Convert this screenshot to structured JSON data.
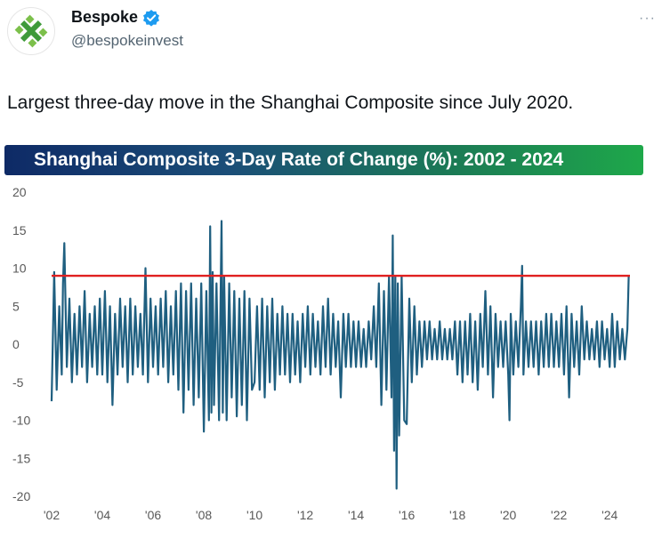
{
  "author": {
    "name": "Bespoke",
    "handle": "@bespokeinvest",
    "verified_color": "#1d9bf0",
    "avatar_icon": "bespoke-logo-icon"
  },
  "menu": {
    "more_label": "···"
  },
  "tweet": {
    "text": "Largest three-day move in the Shanghai Composite since July 2020."
  },
  "colors": {
    "series": "#1f5f80",
    "threshold": "#e02020",
    "banner_start": "#0e2a66",
    "banner_end": "#1ea84a"
  },
  "chart_data": {
    "type": "line",
    "title": "Shanghai Composite 3-Day Rate of Change (%):  2002 - 2024",
    "xlabel": "",
    "ylabel": "",
    "x_ticks": [
      "'02",
      "'04",
      "'06",
      "'08",
      "'10",
      "'12",
      "'14",
      "'16",
      "'18",
      "'20",
      "'22",
      "'24"
    ],
    "y_ticks": [
      20,
      15,
      10,
      5,
      0,
      -5,
      -10,
      -15,
      -20
    ],
    "ylim": [
      -20,
      20
    ],
    "xlim": [
      2002.0,
      2024.8
    ],
    "grid": false,
    "legend": "none",
    "threshold": {
      "value": 9.0,
      "x_start": 2002.0,
      "x_end": 2024.8
    },
    "series": [
      {
        "points": [
          [
            2002.0,
            -7.5
          ],
          [
            2002.1,
            9.5
          ],
          [
            2002.2,
            -6
          ],
          [
            2002.3,
            5
          ],
          [
            2002.4,
            -4
          ],
          [
            2002.45,
            8
          ],
          [
            2002.5,
            13.3
          ],
          [
            2002.6,
            -3
          ],
          [
            2002.7,
            6
          ],
          [
            2002.8,
            -5
          ],
          [
            2002.9,
            4
          ],
          [
            2003.0,
            -4
          ],
          [
            2003.1,
            5
          ],
          [
            2003.2,
            -3
          ],
          [
            2003.3,
            7
          ],
          [
            2003.4,
            -5
          ],
          [
            2003.5,
            4
          ],
          [
            2003.6,
            -3
          ],
          [
            2003.7,
            5
          ],
          [
            2003.8,
            -4
          ],
          [
            2003.9,
            6
          ],
          [
            2004.0,
            -4
          ],
          [
            2004.1,
            7
          ],
          [
            2004.2,
            -5
          ],
          [
            2004.3,
            5
          ],
          [
            2004.4,
            -8
          ],
          [
            2004.5,
            4
          ],
          [
            2004.6,
            -4
          ],
          [
            2004.7,
            6
          ],
          [
            2004.8,
            -3
          ],
          [
            2004.9,
            5
          ],
          [
            2005.0,
            -5
          ],
          [
            2005.1,
            6
          ],
          [
            2005.2,
            -4
          ],
          [
            2005.3,
            5
          ],
          [
            2005.4,
            -3
          ],
          [
            2005.5,
            4
          ],
          [
            2005.6,
            -4
          ],
          [
            2005.7,
            10
          ],
          [
            2005.8,
            -5
          ],
          [
            2005.9,
            6
          ],
          [
            2006.0,
            -3
          ],
          [
            2006.1,
            5
          ],
          [
            2006.2,
            -4
          ],
          [
            2006.3,
            6
          ],
          [
            2006.4,
            -3
          ],
          [
            2006.5,
            7
          ],
          [
            2006.6,
            -5
          ],
          [
            2006.7,
            5
          ],
          [
            2006.8,
            -4
          ],
          [
            2006.9,
            7
          ],
          [
            2007.0,
            -6
          ],
          [
            2007.1,
            8
          ],
          [
            2007.2,
            -9
          ],
          [
            2007.3,
            7
          ],
          [
            2007.4,
            -6
          ],
          [
            2007.5,
            8
          ],
          [
            2007.6,
            -8
          ],
          [
            2007.7,
            6
          ],
          [
            2007.8,
            -7
          ],
          [
            2007.9,
            8
          ],
          [
            2008.0,
            -11.5
          ],
          [
            2008.1,
            7
          ],
          [
            2008.2,
            -10
          ],
          [
            2008.25,
            15.5
          ],
          [
            2008.3,
            -9
          ],
          [
            2008.35,
            9.5
          ],
          [
            2008.4,
            -8
          ],
          [
            2008.5,
            8
          ],
          [
            2008.6,
            -10
          ],
          [
            2008.7,
            16.2
          ],
          [
            2008.75,
            -9
          ],
          [
            2008.8,
            9
          ],
          [
            2008.9,
            -10
          ],
          [
            2009.0,
            8
          ],
          [
            2009.1,
            -7
          ],
          [
            2009.2,
            7
          ],
          [
            2009.3,
            -9.5
          ],
          [
            2009.4,
            6
          ],
          [
            2009.5,
            -8
          ],
          [
            2009.6,
            7
          ],
          [
            2009.7,
            -10
          ],
          [
            2009.8,
            6
          ],
          [
            2009.9,
            -6
          ],
          [
            2010.0,
            -5
          ],
          [
            2010.1,
            5
          ],
          [
            2010.2,
            -6
          ],
          [
            2010.3,
            6
          ],
          [
            2010.4,
            -7
          ],
          [
            2010.5,
            5
          ],
          [
            2010.6,
            -5
          ],
          [
            2010.7,
            6
          ],
          [
            2010.8,
            -6
          ],
          [
            2010.9,
            4
          ],
          [
            2011.0,
            -4
          ],
          [
            2011.1,
            5
          ],
          [
            2011.2,
            -4
          ],
          [
            2011.3,
            4
          ],
          [
            2011.4,
            -5
          ],
          [
            2011.5,
            4
          ],
          [
            2011.6,
            -4
          ],
          [
            2011.7,
            3
          ],
          [
            2011.8,
            -5
          ],
          [
            2011.9,
            4
          ],
          [
            2012.0,
            -3
          ],
          [
            2012.1,
            5
          ],
          [
            2012.2,
            -4
          ],
          [
            2012.3,
            4
          ],
          [
            2012.4,
            -3
          ],
          [
            2012.5,
            3
          ],
          [
            2012.6,
            -4
          ],
          [
            2012.7,
            5
          ],
          [
            2012.8,
            -3
          ],
          [
            2012.9,
            6
          ],
          [
            2013.0,
            -4
          ],
          [
            2013.1,
            4
          ],
          [
            2013.2,
            -3
          ],
          [
            2013.3,
            3
          ],
          [
            2013.4,
            -7
          ],
          [
            2013.5,
            4
          ],
          [
            2013.6,
            -3
          ],
          [
            2013.7,
            4
          ],
          [
            2013.8,
            -3
          ],
          [
            2013.9,
            3
          ],
          [
            2014.0,
            -3
          ],
          [
            2014.1,
            3
          ],
          [
            2014.2,
            -3
          ],
          [
            2014.3,
            2
          ],
          [
            2014.4,
            -3
          ],
          [
            2014.5,
            3
          ],
          [
            2014.6,
            -2
          ],
          [
            2014.7,
            5
          ],
          [
            2014.8,
            -3
          ],
          [
            2014.9,
            8
          ],
          [
            2015.0,
            -8
          ],
          [
            2015.1,
            7
          ],
          [
            2015.2,
            -6
          ],
          [
            2015.3,
            9
          ],
          [
            2015.4,
            -7
          ],
          [
            2015.45,
            14.3
          ],
          [
            2015.5,
            -14
          ],
          [
            2015.55,
            9
          ],
          [
            2015.6,
            -19
          ],
          [
            2015.65,
            8
          ],
          [
            2015.7,
            -12
          ],
          [
            2015.8,
            9
          ],
          [
            2015.9,
            -10
          ],
          [
            2016.0,
            -10.5
          ],
          [
            2016.1,
            6
          ],
          [
            2016.2,
            -5
          ],
          [
            2016.3,
            5
          ],
          [
            2016.4,
            -4
          ],
          [
            2016.5,
            3
          ],
          [
            2016.6,
            -3
          ],
          [
            2016.7,
            3
          ],
          [
            2016.8,
            -2
          ],
          [
            2016.9,
            3
          ],
          [
            2017.0,
            -2
          ],
          [
            2017.1,
            2
          ],
          [
            2017.2,
            -2
          ],
          [
            2017.3,
            3
          ],
          [
            2017.4,
            -2
          ],
          [
            2017.5,
            2
          ],
          [
            2017.6,
            -2
          ],
          [
            2017.7,
            2
          ],
          [
            2017.8,
            -2
          ],
          [
            2017.9,
            3
          ],
          [
            2018.0,
            -4
          ],
          [
            2018.1,
            3
          ],
          [
            2018.2,
            -5
          ],
          [
            2018.3,
            3
          ],
          [
            2018.4,
            -4
          ],
          [
            2018.5,
            4
          ],
          [
            2018.6,
            -5
          ],
          [
            2018.7,
            3
          ],
          [
            2018.8,
            -6
          ],
          [
            2018.9,
            4
          ],
          [
            2019.0,
            -3
          ],
          [
            2019.1,
            7
          ],
          [
            2019.2,
            -4
          ],
          [
            2019.3,
            5
          ],
          [
            2019.4,
            -7
          ],
          [
            2019.5,
            4
          ],
          [
            2019.6,
            -3
          ],
          [
            2019.7,
            3
          ],
          [
            2019.8,
            -3
          ],
          [
            2019.9,
            3
          ],
          [
            2020.0,
            -4
          ],
          [
            2020.05,
            -10
          ],
          [
            2020.1,
            4
          ],
          [
            2020.2,
            -4
          ],
          [
            2020.3,
            3
          ],
          [
            2020.4,
            -3
          ],
          [
            2020.5,
            5
          ],
          [
            2020.55,
            10.3
          ],
          [
            2020.6,
            -4
          ],
          [
            2020.7,
            3
          ],
          [
            2020.8,
            -3
          ],
          [
            2020.9,
            3
          ],
          [
            2021.0,
            -3
          ],
          [
            2021.1,
            3
          ],
          [
            2021.2,
            -4
          ],
          [
            2021.3,
            3
          ],
          [
            2021.4,
            -3
          ],
          [
            2021.5,
            4
          ],
          [
            2021.6,
            -3
          ],
          [
            2021.7,
            4
          ],
          [
            2021.8,
            -3
          ],
          [
            2021.9,
            3
          ],
          [
            2022.0,
            -3
          ],
          [
            2022.1,
            4
          ],
          [
            2022.2,
            -4
          ],
          [
            2022.3,
            5
          ],
          [
            2022.4,
            -7
          ],
          [
            2022.5,
            4
          ],
          [
            2022.6,
            -3
          ],
          [
            2022.7,
            3
          ],
          [
            2022.8,
            -4
          ],
          [
            2022.9,
            5
          ],
          [
            2023.0,
            -2
          ],
          [
            2023.1,
            3
          ],
          [
            2023.2,
            -2
          ],
          [
            2023.3,
            2
          ],
          [
            2023.4,
            -2
          ],
          [
            2023.5,
            3
          ],
          [
            2023.6,
            -3
          ],
          [
            2023.7,
            3
          ],
          [
            2023.8,
            -2
          ],
          [
            2023.9,
            2
          ],
          [
            2024.0,
            -3
          ],
          [
            2024.1,
            4
          ],
          [
            2024.2,
            -3
          ],
          [
            2024.3,
            3
          ],
          [
            2024.4,
            -2
          ],
          [
            2024.5,
            2
          ],
          [
            2024.6,
            -2
          ],
          [
            2024.7,
            2
          ],
          [
            2024.75,
            9.0
          ]
        ]
      }
    ]
  }
}
